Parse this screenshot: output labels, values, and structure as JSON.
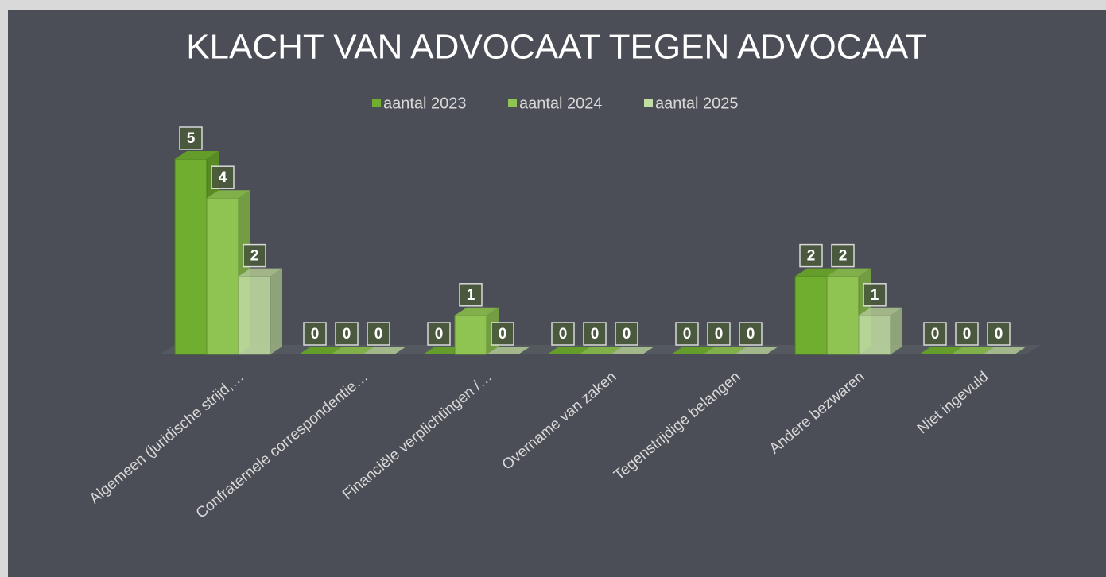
{
  "chart_data": {
    "type": "bar3d",
    "title": "KLACHT VAN ADVOCAAT TEGEN ADVOCAAT",
    "categories": [
      "Algemeen (juridische strijd,…",
      "Confraternele correspondentie…",
      "Financiële verplichtingen /…",
      "Overname van zaken",
      "Tegenstrijdige belangen",
      "Andere bezwaren",
      "Niet ingevuld"
    ],
    "series": [
      {
        "name": "aantal 2023",
        "color": "#6fae2e",
        "values": [
          5,
          0,
          0,
          0,
          0,
          2,
          0
        ]
      },
      {
        "name": "aantal 2024",
        "color": "#8fc452",
        "values": [
          4,
          0,
          1,
          0,
          0,
          2,
          0
        ]
      },
      {
        "name": "aantal 2025",
        "color": "#c3dea3",
        "values": [
          2,
          0,
          0,
          0,
          0,
          1,
          0
        ]
      }
    ],
    "legend": "top"
  }
}
